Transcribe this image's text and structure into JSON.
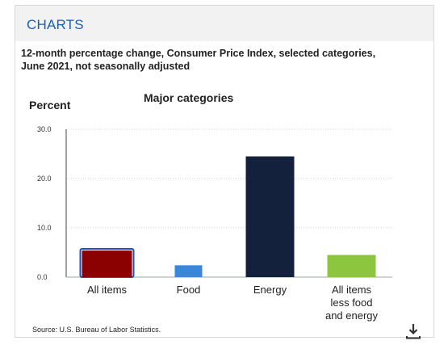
{
  "panel": {
    "title": "CHARTS"
  },
  "chart": {
    "title": "12-month percentage change, Consumer Price Index, selected categories, June 2021, not seasonally adjusted",
    "subtitle": "Major categories",
    "source": "Source: U.S. Bureau of Labor Statistics."
  },
  "icons": {
    "download": "download-icon"
  },
  "colors": {
    "header_title": "#1a5fb4",
    "bar_all_items": "#8b0000",
    "bar_all_items_outline": "#1f4fbf",
    "bar_food": "#3a86d9",
    "bar_energy": "#14213d",
    "bar_core": "#8cc63f",
    "grid": "#d0d0d0"
  },
  "chart_data": {
    "type": "bar",
    "title": "12-month percentage change, Consumer Price Index, selected categories, June 2021, not seasonally adjusted",
    "subtitle": "Major categories",
    "ylabel": "Percent",
    "xlabel": "",
    "ylim": [
      0,
      30
    ],
    "yticks": [
      "0.0",
      "10.0",
      "20.0",
      "30.0"
    ],
    "grid": true,
    "categories": [
      "All items",
      "Food",
      "Energy",
      "All items less food and energy"
    ],
    "category_label_lines": [
      [
        "All items"
      ],
      [
        "Food"
      ],
      [
        "Energy"
      ],
      [
        "All items",
        "less food",
        "and energy"
      ]
    ],
    "values": [
      5.4,
      2.4,
      24.5,
      4.5
    ],
    "colors": [
      "#8b0000",
      "#3a86d9",
      "#14213d",
      "#8cc63f"
    ]
  }
}
